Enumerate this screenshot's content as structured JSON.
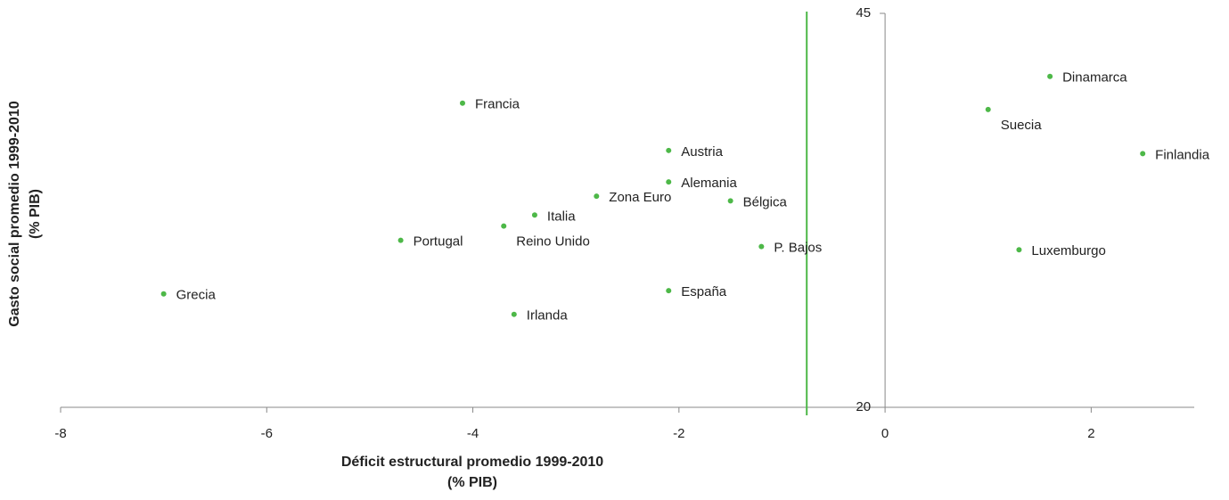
{
  "chart_data": {
    "type": "scatter",
    "x_label": [
      "Déficit estructural promedio 1999-2010",
      "(% PIB)"
    ],
    "y_label": [
      "Gasto social promedio 1999-2010",
      "(% PIB)"
    ],
    "labels": [
      "Dinamarca",
      "Suecia",
      "Finlandia",
      "Luxemburgo",
      "Francia",
      "Austria",
      "Alemania",
      "Zona Euro",
      "Bélgica",
      "Italia",
      "Reino Unido",
      "Portugal",
      "P. Bajos",
      "Grecia",
      "España",
      "Irlanda"
    ],
    "x": [
      1.6,
      1.0,
      2.5,
      1.3,
      -4.1,
      -2.1,
      -2.1,
      -2.8,
      -1.5,
      -3.4,
      -3.7,
      -4.7,
      -1.2,
      -7.0,
      -2.1,
      -3.6
    ],
    "values": [
      41.0,
      38.9,
      36.1,
      30.0,
      39.3,
      36.3,
      34.3,
      33.4,
      33.1,
      32.2,
      31.5,
      30.6,
      30.2,
      27.2,
      27.4,
      25.9
    ],
    "color": "#4db848",
    "vline": {
      "value": -0.76,
      "color": "#4db848"
    },
    "xlim": [
      -8,
      3
    ],
    "xticks": [
      -8,
      -6,
      -4,
      -2,
      0,
      2
    ],
    "ylim": [
      20,
      45
    ],
    "yticks": [
      20,
      45
    ]
  }
}
